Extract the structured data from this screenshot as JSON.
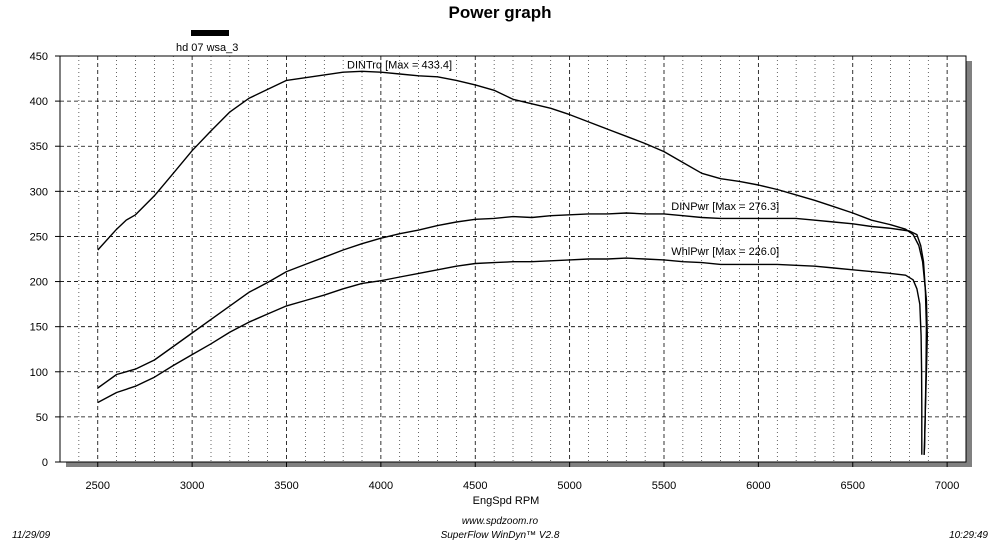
{
  "chart_data": {
    "type": "line",
    "title": "Power graph",
    "xlabel": "EngSpd  RPM",
    "ylabel": "",
    "xlim": [
      2300,
      7100
    ],
    "ylim": [
      0,
      450
    ],
    "x_ticks": [
      2500,
      3000,
      3500,
      4000,
      4500,
      5000,
      5500,
      6000,
      6500,
      7000
    ],
    "y_ticks": [
      0,
      50,
      100,
      150,
      200,
      250,
      300,
      350,
      400,
      450
    ],
    "grid": true,
    "legend": {
      "entries": [
        {
          "name": "hd 07 wsa_3",
          "color": "#000000"
        }
      ],
      "placement": "top-left"
    },
    "series": [
      {
        "name": "DINTrq",
        "label": "DINTrq [Max = 433.4]",
        "color": "#000000",
        "points": [
          [
            2500,
            235
          ],
          [
            2600,
            258
          ],
          [
            2650,
            268
          ],
          [
            2700,
            274
          ],
          [
            2800,
            295
          ],
          [
            2900,
            320
          ],
          [
            3000,
            345
          ],
          [
            3100,
            367
          ],
          [
            3200,
            388
          ],
          [
            3300,
            403
          ],
          [
            3400,
            413
          ],
          [
            3500,
            423
          ],
          [
            3600,
            426
          ],
          [
            3700,
            429
          ],
          [
            3800,
            432
          ],
          [
            3900,
            433
          ],
          [
            4000,
            432
          ],
          [
            4100,
            430
          ],
          [
            4200,
            428
          ],
          [
            4300,
            427
          ],
          [
            4400,
            423
          ],
          [
            4500,
            418
          ],
          [
            4600,
            412
          ],
          [
            4700,
            402
          ],
          [
            4800,
            397
          ],
          [
            4900,
            392
          ],
          [
            5000,
            385
          ],
          [
            5100,
            377
          ],
          [
            5200,
            369
          ],
          [
            5300,
            361
          ],
          [
            5400,
            353
          ],
          [
            5500,
            344
          ],
          [
            5600,
            332
          ],
          [
            5700,
            320
          ],
          [
            5800,
            314
          ],
          [
            5900,
            311
          ],
          [
            6000,
            307
          ],
          [
            6100,
            302
          ],
          [
            6200,
            296
          ],
          [
            6300,
            290
          ],
          [
            6400,
            283
          ],
          [
            6500,
            276
          ],
          [
            6600,
            268
          ],
          [
            6700,
            263
          ],
          [
            6780,
            258
          ],
          [
            6820,
            252
          ],
          [
            6850,
            240
          ],
          [
            6870,
            222
          ],
          [
            6890,
            180
          ],
          [
            6895,
            140
          ],
          [
            6890,
            100
          ],
          [
            6885,
            60
          ],
          [
            6880,
            20
          ],
          [
            6878,
            8
          ]
        ]
      },
      {
        "name": "DINPwr",
        "label": "DINPwr [Max = 276.3]",
        "color": "#000000",
        "points": [
          [
            2500,
            82
          ],
          [
            2600,
            97
          ],
          [
            2700,
            103
          ],
          [
            2800,
            113
          ],
          [
            2900,
            128
          ],
          [
            3000,
            143
          ],
          [
            3100,
            158
          ],
          [
            3200,
            173
          ],
          [
            3300,
            188
          ],
          [
            3400,
            199
          ],
          [
            3500,
            211
          ],
          [
            3600,
            219
          ],
          [
            3700,
            227
          ],
          [
            3800,
            235
          ],
          [
            3900,
            242
          ],
          [
            4000,
            248
          ],
          [
            4100,
            253
          ],
          [
            4200,
            257
          ],
          [
            4300,
            262
          ],
          [
            4400,
            266
          ],
          [
            4500,
            269
          ],
          [
            4600,
            270
          ],
          [
            4700,
            272
          ],
          [
            4800,
            271
          ],
          [
            4900,
            273
          ],
          [
            5000,
            274
          ],
          [
            5100,
            275
          ],
          [
            5200,
            275
          ],
          [
            5300,
            276
          ],
          [
            5400,
            275
          ],
          [
            5500,
            275
          ],
          [
            5600,
            273
          ],
          [
            5700,
            271
          ],
          [
            5800,
            270
          ],
          [
            5900,
            270
          ],
          [
            6000,
            270
          ],
          [
            6100,
            270
          ],
          [
            6200,
            270
          ],
          [
            6300,
            268
          ],
          [
            6400,
            266
          ],
          [
            6500,
            264
          ],
          [
            6600,
            261
          ],
          [
            6700,
            259
          ],
          [
            6800,
            256
          ],
          [
            6840,
            252
          ],
          [
            6860,
            240
          ],
          [
            6875,
            222
          ],
          [
            6885,
            190
          ],
          [
            6890,
            150
          ],
          [
            6888,
            100
          ],
          [
            6884,
            50
          ],
          [
            6880,
            15
          ],
          [
            6878,
            8
          ]
        ]
      },
      {
        "name": "WhlPwr",
        "label": "WhlPwr [Max = 226.0]",
        "color": "#000000",
        "points": [
          [
            2500,
            66
          ],
          [
            2600,
            77
          ],
          [
            2700,
            84
          ],
          [
            2800,
            94
          ],
          [
            2900,
            107
          ],
          [
            3000,
            119
          ],
          [
            3100,
            131
          ],
          [
            3200,
            144
          ],
          [
            3300,
            155
          ],
          [
            3400,
            164
          ],
          [
            3500,
            173
          ],
          [
            3600,
            179
          ],
          [
            3700,
            185
          ],
          [
            3800,
            192
          ],
          [
            3900,
            198
          ],
          [
            4000,
            201
          ],
          [
            4100,
            205
          ],
          [
            4200,
            209
          ],
          [
            4300,
            213
          ],
          [
            4400,
            217
          ],
          [
            4500,
            220
          ],
          [
            4600,
            221
          ],
          [
            4700,
            222
          ],
          [
            4800,
            222
          ],
          [
            4900,
            223
          ],
          [
            5000,
            224
          ],
          [
            5100,
            225
          ],
          [
            5200,
            225
          ],
          [
            5300,
            226
          ],
          [
            5400,
            225
          ],
          [
            5500,
            224
          ],
          [
            5600,
            222
          ],
          [
            5700,
            221
          ],
          [
            5800,
            219
          ],
          [
            5900,
            219
          ],
          [
            6000,
            219
          ],
          [
            6100,
            219
          ],
          [
            6200,
            218
          ],
          [
            6300,
            217
          ],
          [
            6400,
            215
          ],
          [
            6500,
            213
          ],
          [
            6600,
            211
          ],
          [
            6700,
            209
          ],
          [
            6780,
            207
          ],
          [
            6820,
            202
          ],
          [
            6840,
            192
          ],
          [
            6855,
            175
          ],
          [
            6862,
            140
          ],
          [
            6865,
            100
          ],
          [
            6866,
            60
          ],
          [
            6866,
            25
          ],
          [
            6866,
            8
          ]
        ]
      }
    ]
  },
  "footer": {
    "date": "11/29/09",
    "website": "www.spdzoom.ro",
    "software": "SuperFlow WinDyn™ V2.8",
    "time": "10:29:49"
  }
}
